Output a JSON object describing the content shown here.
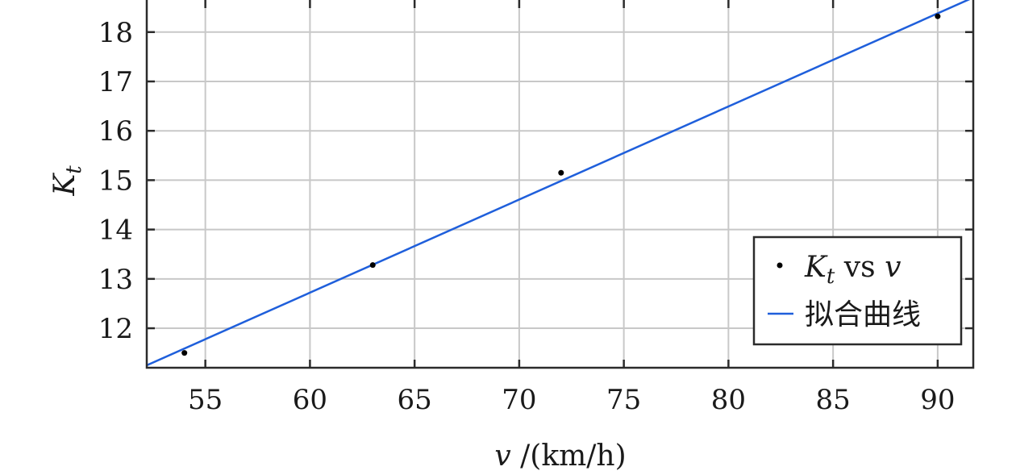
{
  "chart_data": {
    "type": "scatter",
    "xlabel": {
      "var": "v",
      "unit": " /(km/h)"
    },
    "ylabel": {
      "var": "K",
      "sub": "t"
    },
    "xlim": [
      52.2,
      91.7
    ],
    "ylim": [
      11.2,
      18.65
    ],
    "x_ticks": [
      55,
      60,
      65,
      70,
      75,
      80,
      85,
      90
    ],
    "y_ticks": [
      12,
      13,
      14,
      15,
      16,
      17,
      18
    ],
    "grid": true,
    "legend_position": "bottom-right",
    "series": [
      {
        "name": "K_t vs v",
        "kind": "points",
        "color": "#000000",
        "legend": {
          "var": "K",
          "sub": "t",
          "mid": " vs ",
          "var2": "v"
        },
        "points": [
          {
            "x": 54,
            "y": 11.5
          },
          {
            "x": 63,
            "y": 13.28
          },
          {
            "x": 72,
            "y": 15.15
          },
          {
            "x": 90,
            "y": 18.32
          }
        ]
      },
      {
        "name": "拟合曲线",
        "kind": "line",
        "color": "#1f5fdb",
        "legend": {
          "text": "拟合曲线"
        },
        "x": [
          52.2,
          91.7
        ],
        "y": [
          11.25,
          18.7
        ]
      }
    ]
  }
}
